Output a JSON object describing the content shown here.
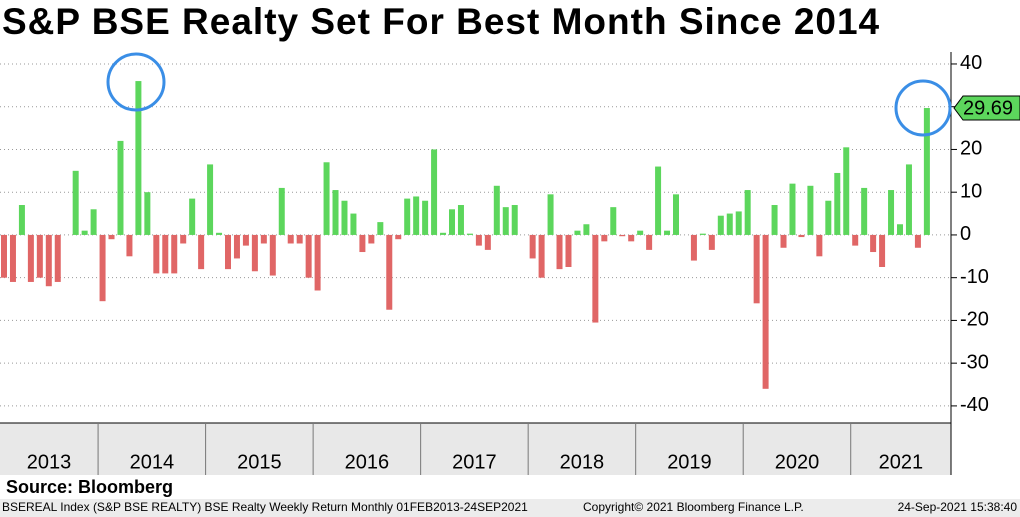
{
  "chart_data": {
    "type": "bar",
    "title": "S&P BSE Realty Set For Best Month Since 2014",
    "year_labels": [
      "2013",
      "2014",
      "2015",
      "2016",
      "2017",
      "2018",
      "2019",
      "2020",
      "2021"
    ],
    "values": [
      -10,
      -11,
      7,
      -11,
      -10,
      -12,
      -11,
      0,
      15,
      1,
      6,
      -15.5,
      -1,
      22,
      -5,
      36,
      10,
      -9,
      -9,
      -9,
      -2,
      8.5,
      -8,
      16.5,
      0.5,
      -8,
      -5.5,
      -2.5,
      -8.5,
      -2,
      -9.5,
      11,
      -2,
      -2,
      -10,
      -13,
      17,
      10.5,
      8,
      5,
      -4,
      -2,
      3,
      -17.5,
      -1,
      8.5,
      9,
      8,
      20,
      0.5,
      6,
      7,
      0.3,
      -2.5,
      -3.5,
      11.5,
      6.5,
      7,
      0,
      -5.5,
      -10,
      9.5,
      -8,
      -7.5,
      1,
      2.5,
      -20.5,
      -1.5,
      6.5,
      -0.3,
      -1.5,
      1,
      -3.5,
      16,
      1,
      9.5,
      0,
      -6,
      0.3,
      -3.5,
      4.5,
      5,
      5.5,
      10.5,
      -16,
      -36,
      7,
      -3,
      12,
      -0.5,
      11.5,
      -5,
      8,
      14.5,
      20.5,
      -2.5,
      11,
      -4,
      -7.5,
      10.5,
      2.5,
      16.5,
      -3,
      29.69
    ],
    "positive_color": "#5cd65c",
    "negative_color": "#e06666",
    "ylim": [
      -44,
      42.8
    ],
    "yticks": [
      -40,
      -30,
      -20,
      -10,
      0,
      10,
      20,
      30,
      40
    ],
    "grid": true,
    "highlight_last": true,
    "source": "Source: Bloomberg",
    "footer_left": "BSEREAL Index (S&P BSE REALTY) BSE Realty Weekly Return  Monthly 01FEB2013-24SEP2021",
    "footer_center": "Copyright© 2021 Bloomberg Finance L.P.",
    "footer_right": "24-Sep-2021 15:38:40"
  }
}
